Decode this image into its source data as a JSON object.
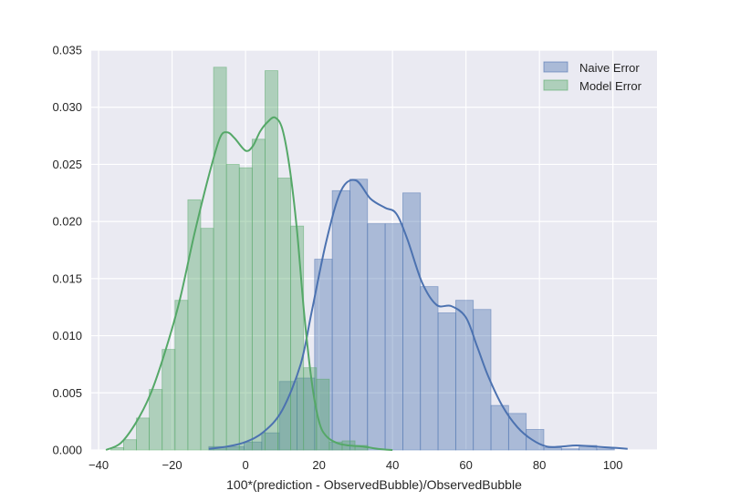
{
  "chart_data": {
    "type": "bar",
    "title": "",
    "xlabel": "100*(prediction - ObservedBubble)/ObservedBubble",
    "ylabel": "",
    "xlim": [
      -42,
      112
    ],
    "ylim": [
      0,
      0.035
    ],
    "xticks": [
      -40,
      -20,
      0,
      20,
      40,
      60,
      80,
      100
    ],
    "yticks": [
      0.0,
      0.005,
      0.01,
      0.015,
      0.02,
      0.025,
      0.03,
      0.035
    ],
    "xtick_labels": [
      "−40",
      "−20",
      "0",
      "20",
      "40",
      "60",
      "80",
      "100"
    ],
    "ytick_labels": [
      "0.000",
      "0.005",
      "0.010",
      "0.015",
      "0.020",
      "0.025",
      "0.030",
      "0.035"
    ],
    "grid": true,
    "background": "#eaeaf2",
    "legend_position": "top-right",
    "series": [
      {
        "name": "Naive Error",
        "color": "#4c72b0",
        "bin_width": 4.8,
        "bin_starts": [
          -10,
          -5.2,
          -0.4,
          4.4,
          9.2,
          14,
          18.8,
          23.6,
          28.4,
          33.2,
          38,
          42.8,
          47.6,
          52.4,
          57.2,
          62,
          66.8,
          71.6,
          76.4,
          81.2,
          86,
          90.8,
          95.6
        ],
        "values": [
          0.0003,
          0.0003,
          0.0007,
          0.0015,
          0.006,
          0.0063,
          0.0167,
          0.0227,
          0.0237,
          0.0198,
          0.0198,
          0.0225,
          0.0143,
          0.012,
          0.0131,
          0.0123,
          0.0039,
          0.0032,
          0.0018,
          0.0002,
          0.0001,
          0.0004,
          0.0001
        ],
        "kde_x": [
          -10,
          -5,
          0,
          5,
          10,
          15,
          18,
          22,
          26,
          30,
          34,
          38,
          41,
          44,
          48,
          52,
          56,
          60,
          63,
          66,
          70,
          74,
          78,
          82,
          86,
          90,
          95,
          100,
          104
        ],
        "kde_y": [
          0.0001,
          0.0003,
          0.0007,
          0.0016,
          0.0035,
          0.0075,
          0.0121,
          0.0183,
          0.0227,
          0.0236,
          0.022,
          0.0212,
          0.0207,
          0.0185,
          0.0147,
          0.0127,
          0.0126,
          0.0116,
          0.0091,
          0.0065,
          0.0038,
          0.002,
          0.0009,
          0.0003,
          0.0003,
          0.0004,
          0.0003,
          0.0002,
          0.0001
        ]
      },
      {
        "name": "Model Error",
        "color": "#55a868",
        "bin_width": 3.5,
        "bin_starts": [
          -36.7,
          -33.2,
          -29.7,
          -26.2,
          -22.7,
          -19.2,
          -15.7,
          -12.2,
          -8.7,
          -5.2,
          -1.7,
          1.8,
          5.3,
          8.8,
          12.3,
          15.8,
          19.3,
          22.8,
          26.3,
          29.8,
          33.3
        ],
        "values": [
          0.0002,
          0.0009,
          0.0028,
          0.0053,
          0.0088,
          0.0131,
          0.0219,
          0.0194,
          0.0335,
          0.025,
          0.0247,
          0.0272,
          0.0332,
          0.0238,
          0.0196,
          0.0072,
          0.0062,
          0.0007,
          0.0008,
          0.0004,
          0.0
        ]
      }
    ],
    "kde_model_x": [
      -38,
      -34,
      -30,
      -26,
      -22,
      -18,
      -14,
      -10,
      -7,
      -5,
      -3,
      0,
      2,
      4,
      6,
      8,
      10,
      12,
      14,
      16,
      18,
      20,
      22,
      25,
      28,
      32,
      36,
      40
    ],
    "kde_model_y": [
      0.0,
      0.0006,
      0.0023,
      0.0048,
      0.0085,
      0.013,
      0.0188,
      0.024,
      0.0273,
      0.0278,
      0.0273,
      0.0262,
      0.0266,
      0.0279,
      0.0287,
      0.0291,
      0.0281,
      0.0247,
      0.0192,
      0.0118,
      0.006,
      0.0025,
      0.0012,
      0.0006,
      0.0004,
      0.0003,
      0.0001,
      0.0
    ]
  }
}
